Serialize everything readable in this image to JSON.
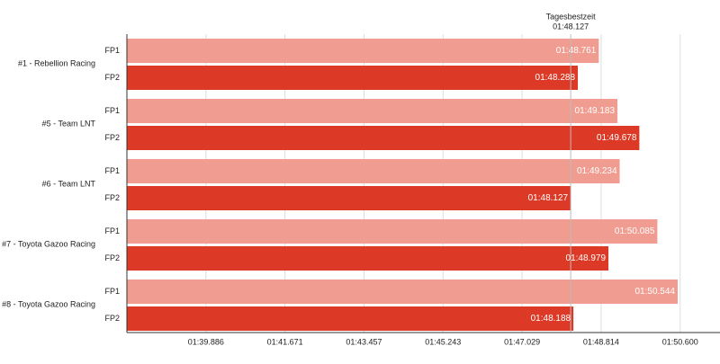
{
  "chart_data": {
    "type": "bar",
    "orientation": "horizontal",
    "categories": [
      "#1 - Rebellion Racing",
      "#5 - Team LNT",
      "#6 - Team LNT",
      "#7 - Toyota Gazoo Racing",
      "#8 - Toyota Gazoo Racing"
    ],
    "series": [
      {
        "name": "FP1",
        "color": "#f19c90",
        "values": [
          108.761,
          109.183,
          109.234,
          110.085,
          110.544
        ],
        "value_labels": [
          "01:48.761",
          "01:49.183",
          "01:49.234",
          "01:50.085",
          "01:50.544"
        ]
      },
      {
        "name": "FP2",
        "color": "#dc3a26",
        "values": [
          108.288,
          109.678,
          108.127,
          108.979,
          108.188
        ],
        "value_labels": [
          "01:48.288",
          "01:49.678",
          "01:48.127",
          "01:48.979",
          "01:48.188"
        ]
      }
    ],
    "xlim": [
      98.1,
      111.5
    ],
    "xticks": [
      {
        "value": 99.886,
        "label": "01:39.886"
      },
      {
        "value": 101.671,
        "label": "01:41.671"
      },
      {
        "value": 103.457,
        "label": "01:43.457"
      },
      {
        "value": 105.243,
        "label": "01:45.243"
      },
      {
        "value": 107.029,
        "label": "01:47.029"
      },
      {
        "value": 108.814,
        "label": "01:48.814"
      },
      {
        "value": 110.6,
        "label": "01:50.600"
      }
    ],
    "grid": true,
    "annotation": {
      "text": "Tagesbestzeit",
      "value": 108.127,
      "value_label": "01:48.127"
    }
  }
}
